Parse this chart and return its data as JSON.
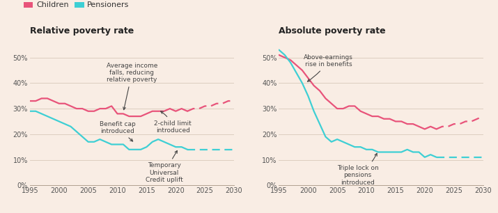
{
  "bg_color": "#f9ede4",
  "children_color": "#e8537a",
  "pensioners_color": "#3ecfd4",
  "annotation_color": "#444444",
  "grid_color": "#d8c8ba",
  "axis_color": "#b0a090",
  "rel_children_solid_x": [
    1995,
    1996,
    1997,
    1998,
    1999,
    2000,
    2001,
    2002,
    2003,
    2004,
    2005,
    2006,
    2007,
    2008,
    2009,
    2010,
    2011,
    2012,
    2013,
    2014,
    2015,
    2016,
    2017,
    2018,
    2019,
    2020,
    2021,
    2022
  ],
  "rel_children_solid_y": [
    33,
    33,
    34,
    34,
    33,
    32,
    32,
    31,
    30,
    30,
    29,
    29,
    30,
    30,
    31,
    28,
    28,
    27,
    27,
    27,
    28,
    29,
    29,
    29,
    30,
    29,
    30,
    29
  ],
  "rel_children_dashed_x": [
    2022,
    2023,
    2024,
    2025,
    2026,
    2027,
    2028,
    2029,
    2030
  ],
  "rel_children_dashed_y": [
    29,
    30,
    30,
    31,
    31,
    32,
    32,
    33,
    33
  ],
  "rel_pensioners_solid_x": [
    1995,
    1996,
    1997,
    1998,
    1999,
    2000,
    2001,
    2002,
    2003,
    2004,
    2005,
    2006,
    2007,
    2008,
    2009,
    2010,
    2011,
    2012,
    2013,
    2014,
    2015,
    2016,
    2017,
    2018,
    2019,
    2020,
    2021,
    2022
  ],
  "rel_pensioners_solid_y": [
    29,
    29,
    28,
    27,
    26,
    25,
    24,
    23,
    21,
    19,
    17,
    17,
    18,
    17,
    16,
    16,
    16,
    14,
    14,
    14,
    15,
    17,
    18,
    17,
    16,
    15,
    15,
    14
  ],
  "rel_pensioners_dashed_x": [
    2022,
    2023,
    2024,
    2025,
    2026,
    2027,
    2028,
    2029,
    2030
  ],
  "rel_pensioners_dashed_y": [
    14,
    14,
    14,
    14,
    14,
    14,
    14,
    14,
    14
  ],
  "abs_children_solid_x": [
    1995,
    1996,
    1997,
    1998,
    1999,
    2000,
    2001,
    2002,
    2003,
    2004,
    2005,
    2006,
    2007,
    2008,
    2009,
    2010,
    2011,
    2012,
    2013,
    2014,
    2015,
    2016,
    2017,
    2018,
    2019,
    2020,
    2021,
    2022
  ],
  "abs_children_solid_y": [
    51,
    50,
    49,
    47,
    45,
    42,
    39,
    37,
    34,
    32,
    30,
    30,
    31,
    31,
    29,
    28,
    27,
    27,
    26,
    26,
    25,
    25,
    24,
    24,
    23,
    22,
    23,
    22
  ],
  "abs_children_dashed_x": [
    2022,
    2023,
    2024,
    2025,
    2026,
    2027,
    2028,
    2029,
    2030
  ],
  "abs_children_dashed_y": [
    22,
    23,
    23,
    24,
    24,
    25,
    25,
    26,
    27
  ],
  "abs_pensioners_solid_x": [
    1995,
    1996,
    1997,
    1998,
    1999,
    2000,
    2001,
    2002,
    2003,
    2004,
    2005,
    2006,
    2007,
    2008,
    2009,
    2010,
    2011,
    2012,
    2013,
    2014,
    2015,
    2016,
    2017,
    2018,
    2019,
    2020,
    2021,
    2022
  ],
  "abs_pensioners_solid_y": [
    53,
    51,
    48,
    44,
    40,
    35,
    29,
    24,
    19,
    17,
    18,
    17,
    16,
    15,
    15,
    14,
    14,
    13,
    13,
    13,
    13,
    13,
    14,
    13,
    13,
    11,
    12,
    11
  ],
  "abs_pensioners_dashed_x": [
    2022,
    2023,
    2024,
    2025,
    2026,
    2027,
    2028,
    2029,
    2030
  ],
  "abs_pensioners_dashed_y": [
    11,
    11,
    11,
    11,
    11,
    11,
    11,
    11,
    11
  ],
  "rel_title": "Relative poverty rate",
  "abs_title": "Absolute poverty rate",
  "legend_children": "Children",
  "legend_pensioners": "Pensioners",
  "xlim": [
    1995,
    2030
  ],
  "ylim": [
    0,
    55
  ],
  "yticks": [
    0,
    10,
    20,
    30,
    40,
    50
  ],
  "xticks": [
    1995,
    2000,
    2005,
    2010,
    2015,
    2020,
    2025,
    2030
  ]
}
